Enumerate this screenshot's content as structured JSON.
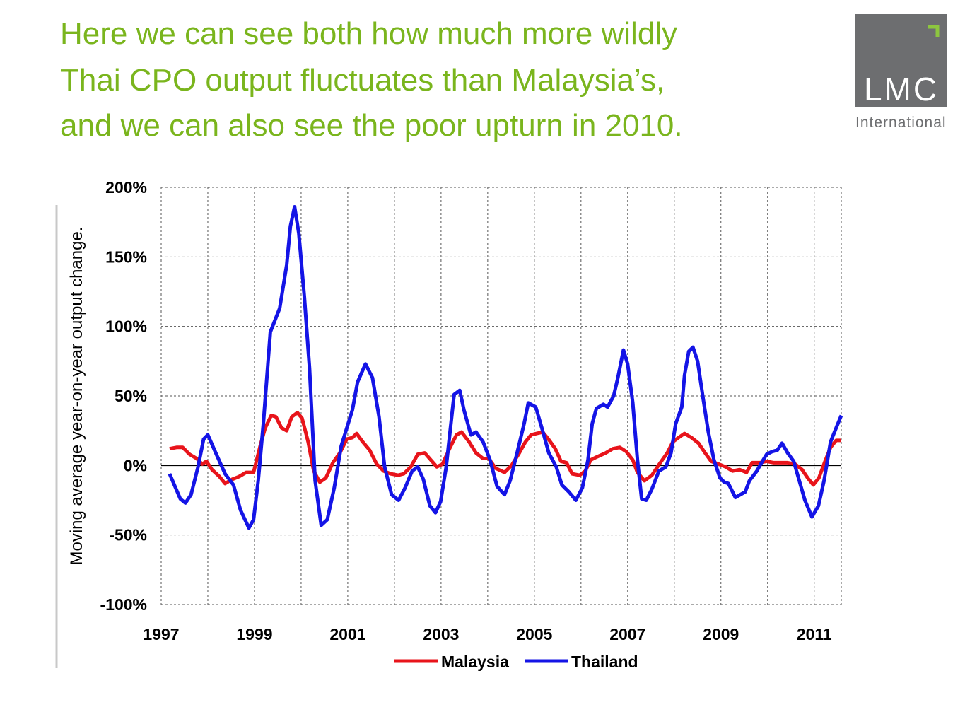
{
  "header": {
    "title": [
      "Here we can see both how much more wildly",
      "Thai CPO output fluctuates than Malaysia’s,",
      "and we can also see the poor upturn in 2010."
    ],
    "logo": {
      "name": "LMC",
      "subtitle": "International"
    }
  },
  "chart_data": {
    "type": "line",
    "y_label": "Moving average year-on-year output change.",
    "xlim": [
      1997,
      2011.58
    ],
    "ylim": [
      -100,
      200
    ],
    "xticks": [
      1997,
      1999,
      2001,
      2003,
      2005,
      2007,
      2009,
      2011
    ],
    "x_minor_ticks": [
      1998,
      2000,
      2002,
      2004,
      2006,
      2008,
      2010
    ],
    "yticks": [
      {
        "value": -100,
        "label": "-100%"
      },
      {
        "value": -50,
        "label": "-50%"
      },
      {
        "value": 0,
        "label": "0%"
      },
      {
        "value": 50,
        "label": "50%"
      },
      {
        "value": 100,
        "label": "100%"
      },
      {
        "value": 150,
        "label": "150%"
      },
      {
        "value": 200,
        "label": "200%"
      }
    ],
    "grid": true,
    "legend": "bottom",
    "series": [
      {
        "name": "Malaysia",
        "color": "#e8141b",
        "x": [
          1997.18,
          1997.33,
          1997.46,
          1997.61,
          1997.76,
          1997.88,
          1997.97,
          1998.09,
          1998.25,
          1998.37,
          1998.52,
          1998.67,
          1998.82,
          1998.98,
          1999.13,
          1999.23,
          1999.36,
          1999.46,
          1999.58,
          1999.69,
          1999.8,
          1999.92,
          2000.02,
          2000.15,
          2000.27,
          2000.4,
          2000.53,
          2000.68,
          2000.83,
          2000.98,
          2001.1,
          2001.19,
          2001.32,
          2001.47,
          2001.62,
          2001.77,
          2001.92,
          2002.08,
          2002.2,
          2002.35,
          2002.5,
          2002.65,
          2002.78,
          2002.91,
          2003.03,
          2003.18,
          2003.33,
          2003.44,
          2003.6,
          2003.75,
          2003.9,
          2004.02,
          2004.17,
          2004.36,
          2004.51,
          2004.66,
          2004.81,
          2004.93,
          2005.05,
          2005.18,
          2005.3,
          2005.45,
          2005.57,
          2005.69,
          2005.81,
          2005.97,
          2006.09,
          2006.21,
          2006.33,
          2006.53,
          2006.68,
          2006.83,
          2006.97,
          2007.11,
          2007.21,
          2007.36,
          2007.52,
          2007.7,
          2007.85,
          2007.97,
          2008.09,
          2008.22,
          2008.37,
          2008.52,
          2008.64,
          2008.79,
          2008.95,
          2009.1,
          2009.25,
          2009.4,
          2009.55,
          2009.67,
          2009.83,
          2009.98,
          2010.13,
          2010.28,
          2010.43,
          2010.59,
          2010.74,
          2010.86,
          2010.98,
          2011.1,
          2011.22,
          2011.35,
          2011.47,
          2011.58
        ],
        "values": [
          12,
          13,
          13,
          8,
          5,
          1,
          3,
          -3,
          -8,
          -13,
          -10,
          -8,
          -5,
          -5,
          15,
          27,
          36,
          35,
          27,
          25,
          35,
          38,
          34,
          17,
          -4,
          -12,
          -9,
          2,
          9,
          19,
          20,
          23,
          17,
          11,
          1,
          -4,
          -6,
          -7,
          -6,
          -1,
          8,
          9,
          4,
          -1,
          1,
          12,
          22,
          24,
          17,
          9,
          5,
          5,
          -2,
          -5,
          0,
          8,
          17,
          22,
          23,
          24,
          19,
          12,
          3,
          2,
          -6,
          -7,
          -4,
          4,
          6,
          9,
          12,
          13,
          10,
          4,
          -5,
          -11,
          -7,
          2,
          9,
          17,
          20,
          23,
          20,
          16,
          10,
          3,
          1,
          -1,
          -4,
          -3,
          -5,
          2,
          2,
          3,
          2,
          2,
          2,
          1,
          -3,
          -9,
          -14,
          -9,
          2,
          13,
          18,
          18
        ]
      },
      {
        "name": "Thailand",
        "color": "#1414e6",
        "x": [
          1997.18,
          1997.41,
          1997.52,
          1997.64,
          1997.79,
          1997.91,
          1998.0,
          1998.17,
          1998.37,
          1998.55,
          1998.7,
          1998.88,
          1998.98,
          1999.08,
          1999.19,
          1999.34,
          1999.54,
          1999.69,
          1999.77,
          1999.86,
          1999.95,
          2000.07,
          2000.18,
          2000.3,
          2000.43,
          2000.56,
          2000.71,
          2000.86,
          2000.98,
          2001.1,
          2001.21,
          2001.38,
          2001.53,
          2001.67,
          2001.79,
          2001.94,
          2002.09,
          2002.23,
          2002.38,
          2002.5,
          2002.62,
          2002.76,
          2002.88,
          2002.99,
          2003.11,
          2003.28,
          2003.4,
          2003.49,
          2003.64,
          2003.75,
          2003.9,
          2004.05,
          2004.2,
          2004.36,
          2004.48,
          2004.63,
          2004.78,
          2004.87,
          2005.03,
          2005.16,
          2005.31,
          2005.47,
          2005.59,
          2005.74,
          2005.89,
          2006.03,
          2006.15,
          2006.24,
          2006.33,
          2006.48,
          2006.57,
          2006.7,
          2006.79,
          2006.91,
          2007.0,
          2007.11,
          2007.21,
          2007.3,
          2007.4,
          2007.52,
          2007.67,
          2007.82,
          2007.93,
          2008.03,
          2008.16,
          2008.22,
          2008.31,
          2008.4,
          2008.5,
          2008.61,
          2008.73,
          2008.85,
          2008.98,
          2009.07,
          2009.16,
          2009.31,
          2009.52,
          2009.61,
          2009.77,
          2009.87,
          2009.98,
          2010.1,
          2010.21,
          2010.31,
          2010.43,
          2010.56,
          2010.68,
          2010.8,
          2010.95,
          2011.09,
          2011.21,
          2011.35,
          2011.47,
          2011.58
        ],
        "values": [
          -6,
          -24,
          -27,
          -21,
          -1,
          19,
          22,
          9,
          -6,
          -14,
          -32,
          -45,
          -39,
          -11,
          30,
          96,
          113,
          144,
          172,
          186,
          167,
          121,
          70,
          -11,
          -43,
          -39,
          -16,
          14,
          27,
          40,
          60,
          73,
          63,
          35,
          -1,
          -21,
          -25,
          -16,
          -4,
          -1,
          -10,
          -29,
          -34,
          -26,
          -1,
          51,
          54,
          40,
          22,
          24,
          17,
          4,
          -15,
          -21,
          -11,
          9,
          30,
          45,
          42,
          27,
          9,
          -1,
          -14,
          -19,
          -25,
          -16,
          4,
          30,
          41,
          44,
          42,
          50,
          63,
          83,
          73,
          45,
          4,
          -24,
          -25,
          -17,
          -4,
          -1,
          9,
          30,
          42,
          65,
          82,
          85,
          75,
          50,
          24,
          4,
          -9,
          -12,
          -13,
          -23,
          -19,
          -11,
          -4,
          2,
          8,
          10,
          11,
          16,
          9,
          3,
          -11,
          -25,
          -37,
          -29,
          -11,
          17,
          27,
          36
        ]
      }
    ]
  }
}
